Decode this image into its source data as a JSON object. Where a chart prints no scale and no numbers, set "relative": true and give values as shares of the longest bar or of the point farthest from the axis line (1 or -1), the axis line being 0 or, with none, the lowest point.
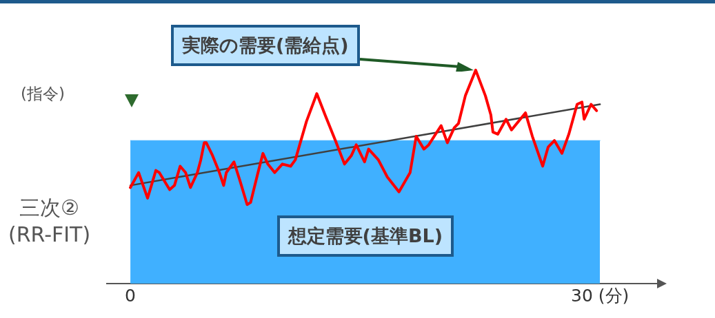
{
  "chart_data": {
    "type": "line",
    "relative": true,
    "marker": "none",
    "line_style": "solid",
    "xlim": [
      -1.5,
      34
    ],
    "xticks": [
      0,
      {
        "value": 30,
        "label": "30 (分)"
      }
    ],
    "series": [
      {
        "type": "area",
        "color": "#40b0ff",
        "x": [
          0,
          30
        ],
        "values": [
          0.67,
          0.67
        ]
      },
      {
        "color": "#ff0000",
        "x": [
          0,
          0.53,
          1.1,
          1.63,
          1.85,
          2.51,
          2.82,
          3.18,
          3.53,
          3.84,
          4.28,
          4.5,
          4.72,
          4.85,
          5.25,
          5.69,
          5.96,
          6.13,
          6.62,
          7.01,
          7.46,
          7.68,
          8.12,
          8.47,
          8.78,
          9.22,
          9.71,
          10.24,
          10.54,
          11.25,
          11.91,
          12.44,
          13.1,
          13.68,
          14.12,
          14.43,
          14.96,
          15.22,
          15.84,
          16.41,
          17.16,
          17.87,
          18.26,
          18.75,
          19.06,
          19.85,
          20.25,
          20.69,
          20.96,
          21.4,
          22.06,
          22.68,
          23.03,
          23.16,
          23.47,
          24,
          24.35,
          25.24,
          25.68,
          26.34,
          26.69,
          27.09,
          27.57,
          28.01,
          28.54,
          28.85,
          28.99,
          29.43,
          29.78
        ],
        "values": [
          0.45,
          0.52,
          0.4,
          0.53,
          0.52,
          0.44,
          0.46,
          0.55,
          0.52,
          0.45,
          0.52,
          0.58,
          0.66,
          0.66,
          0.6,
          0.52,
          0.46,
          0.52,
          0.57,
          0.48,
          0.37,
          0.38,
          0.51,
          0.61,
          0.56,
          0.52,
          0.56,
          0.55,
          0.58,
          0.76,
          0.89,
          0.79,
          0.67,
          0.56,
          0.6,
          0.65,
          0.57,
          0.63,
          0.58,
          0.5,
          0.43,
          0.52,
          0.69,
          0.63,
          0.65,
          0.74,
          0.66,
          0.73,
          0.75,
          0.88,
          1.0,
          0.88,
          0.79,
          0.71,
          0.7,
          0.77,
          0.72,
          0.8,
          0.69,
          0.55,
          0.64,
          0.67,
          0.61,
          0.7,
          0.84,
          0.85,
          0.77,
          0.84,
          0.81
        ]
      },
      {
        "type": "line",
        "color": "#404040",
        "x": [
          0,
          30
        ],
        "values": [
          0.46,
          0.84
        ]
      }
    ],
    "annotations": [
      "実際の需要(需給点)",
      "(指令)",
      "三次②\n(RR-FIT)",
      "想定需要(基準BL)"
    ]
  }
}
